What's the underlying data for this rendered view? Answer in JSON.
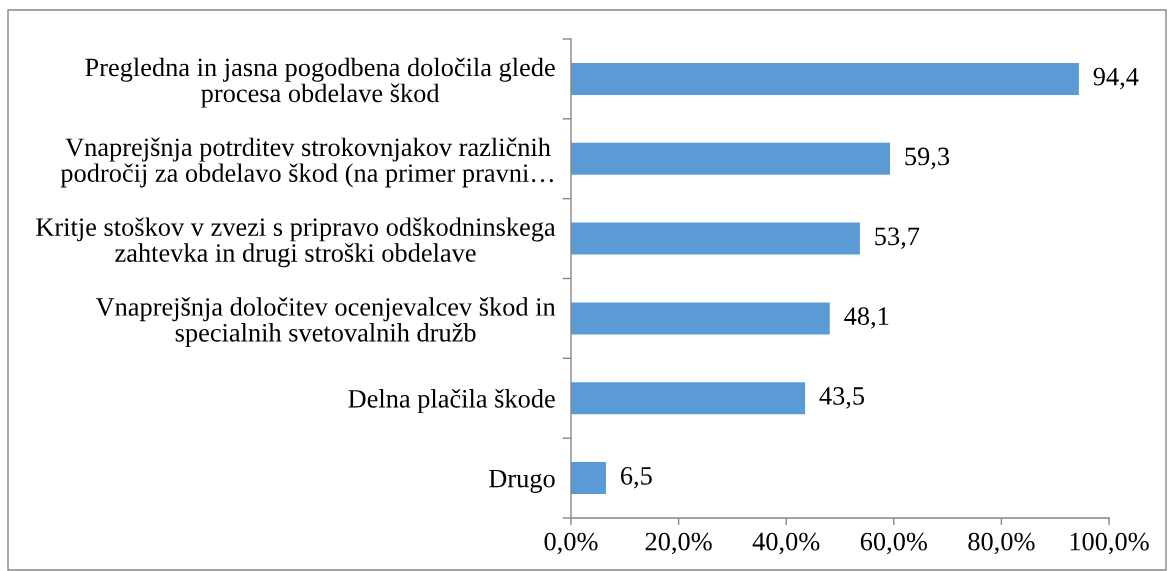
{
  "chart_data": {
    "type": "bar",
    "orientation": "horizontal",
    "categories": [
      "Pregledna in jasna pogodbena določila glede\nprocesa obdelave škod",
      "Vnaprejšnja potrditev strokovnjakov različnih\npodročij za obdelavo škod (na primer pravni…",
      "Kritje stoškov v zvezi s pripravo odškodninskega\nzahtevka in drugi stroški obdelave",
      "Vnaprejšnja določitev ocenjevalcev škod in\nspecialnih svetovalnih družb",
      "Delna plačila škode",
      "Drugo"
    ],
    "values": [
      94.4,
      59.3,
      53.7,
      48.1,
      43.5,
      6.5
    ],
    "value_labels": [
      "94,4",
      "59,3",
      "53,7",
      "48,1",
      "43,5",
      "6,5"
    ],
    "color": "#5b9bd5",
    "xlim": [
      0,
      100
    ],
    "xticks": [
      {
        "value": 0,
        "label": "0,0%"
      },
      {
        "value": 20,
        "label": "20,0%"
      },
      {
        "value": 40,
        "label": "40,0%"
      },
      {
        "value": 60,
        "label": "60,0%"
      },
      {
        "value": 80,
        "label": "80,0%"
      },
      {
        "value": 100,
        "label": "100,0%"
      }
    ]
  }
}
